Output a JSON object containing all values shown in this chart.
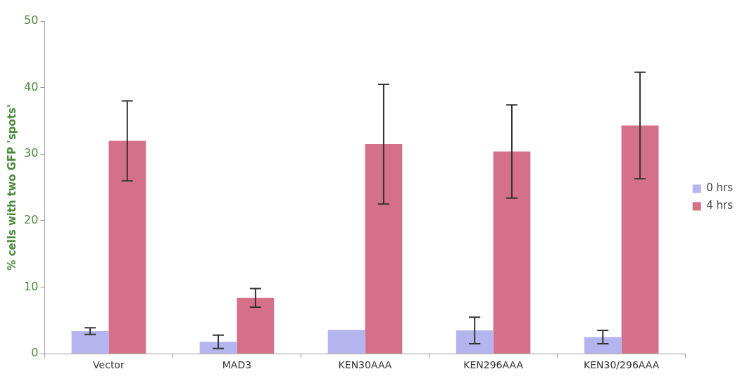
{
  "chart_data": {
    "type": "bar",
    "ylabel": "% cells with two GFP 'spots'",
    "categories": [
      "Vector",
      "MAD3",
      "KEN30AAA",
      "KEN296AAA",
      "KEN30/296AAA"
    ],
    "series": [
      {
        "name": "0 hrs",
        "color": "#b4b4ee",
        "values": [
          3.4,
          1.8,
          3.6,
          3.5,
          2.5
        ],
        "errors": [
          0.5,
          1,
          null,
          2,
          1
        ]
      },
      {
        "name": "4 hrs",
        "color": "#d4708a",
        "values": [
          32,
          8.4,
          31.5,
          30.4,
          34.3
        ],
        "errors": [
          6,
          1.4,
          9,
          7,
          8
        ]
      }
    ],
    "ylim": [
      0,
      50
    ],
    "yticks": [
      0,
      10,
      20,
      30,
      40,
      50
    ],
    "grid": false,
    "legend": "right"
  }
}
